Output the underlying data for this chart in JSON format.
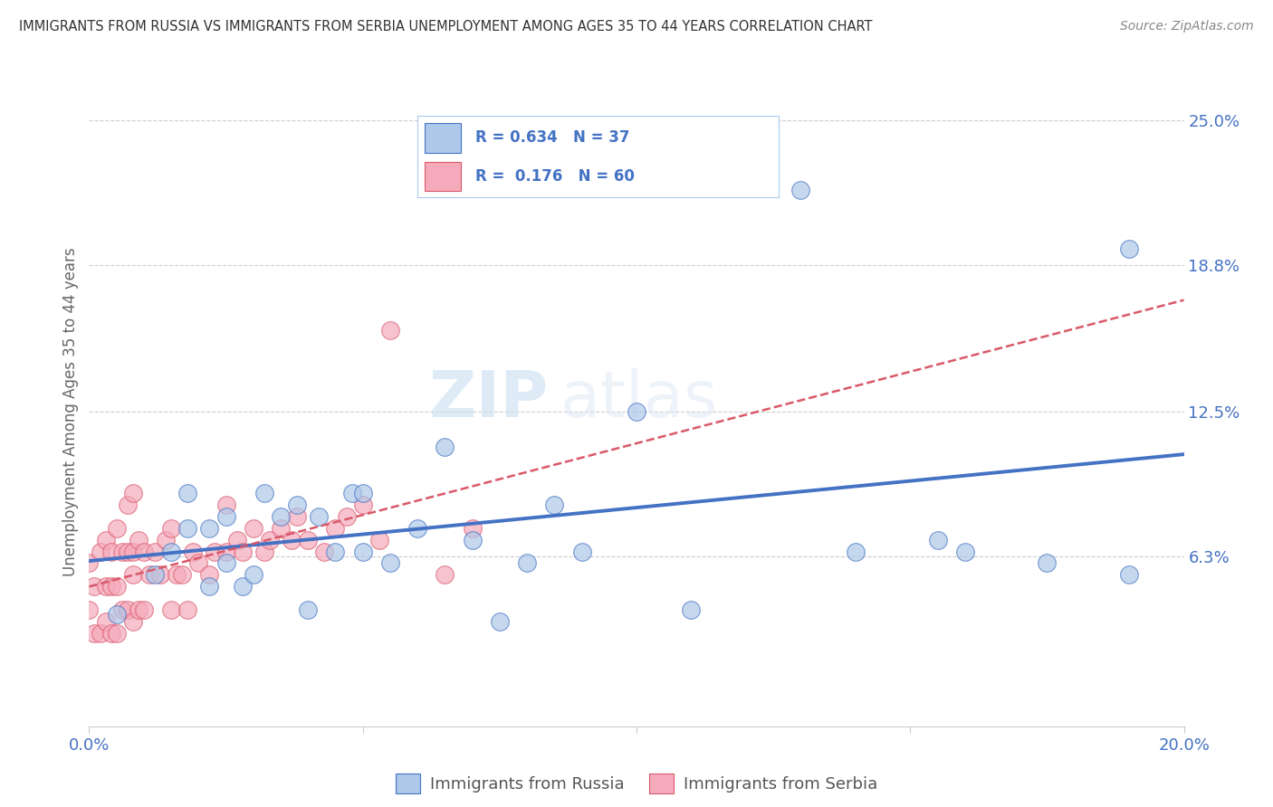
{
  "title": "IMMIGRANTS FROM RUSSIA VS IMMIGRANTS FROM SERBIA UNEMPLOYMENT AMONG AGES 35 TO 44 YEARS CORRELATION CHART",
  "source": "Source: ZipAtlas.com",
  "ylabel": "Unemployment Among Ages 35 to 44 years",
  "xlim": [
    0.0,
    0.2
  ],
  "ylim": [
    -0.01,
    0.26
  ],
  "ytick_labels_right": [
    "6.3%",
    "12.5%",
    "18.8%",
    "25.0%"
  ],
  "ytick_vals_right": [
    0.063,
    0.125,
    0.188,
    0.25
  ],
  "russia_R": "0.634",
  "russia_N": "37",
  "serbia_R": "0.176",
  "serbia_N": "60",
  "russia_color": "#adc8e8",
  "serbia_color": "#f5aabb",
  "russia_line_color": "#4472c4",
  "serbia_line_color": "#d9596a",
  "background_color": "#ffffff",
  "watermark_zip": "ZIP",
  "watermark_atlas": "atlas",
  "russia_x": [
    0.005,
    0.012,
    0.015,
    0.018,
    0.018,
    0.022,
    0.022,
    0.025,
    0.025,
    0.028,
    0.03,
    0.032,
    0.035,
    0.038,
    0.04,
    0.042,
    0.045,
    0.048,
    0.05,
    0.05,
    0.055,
    0.06,
    0.065,
    0.07,
    0.075,
    0.08,
    0.085,
    0.09,
    0.1,
    0.11,
    0.13,
    0.14,
    0.155,
    0.16,
    0.175,
    0.19,
    0.19
  ],
  "russia_y": [
    0.038,
    0.055,
    0.065,
    0.09,
    0.075,
    0.05,
    0.075,
    0.06,
    0.08,
    0.05,
    0.055,
    0.09,
    0.08,
    0.085,
    0.04,
    0.08,
    0.065,
    0.09,
    0.065,
    0.09,
    0.06,
    0.075,
    0.11,
    0.07,
    0.035,
    0.06,
    0.085,
    0.065,
    0.125,
    0.04,
    0.22,
    0.065,
    0.07,
    0.065,
    0.06,
    0.195,
    0.055
  ],
  "serbia_x": [
    0.0,
    0.0,
    0.001,
    0.001,
    0.002,
    0.002,
    0.003,
    0.003,
    0.003,
    0.004,
    0.004,
    0.004,
    0.005,
    0.005,
    0.005,
    0.006,
    0.006,
    0.007,
    0.007,
    0.007,
    0.008,
    0.008,
    0.008,
    0.008,
    0.009,
    0.009,
    0.01,
    0.01,
    0.011,
    0.012,
    0.013,
    0.014,
    0.015,
    0.015,
    0.016,
    0.017,
    0.018,
    0.019,
    0.02,
    0.022,
    0.023,
    0.025,
    0.025,
    0.027,
    0.028,
    0.03,
    0.032,
    0.033,
    0.035,
    0.037,
    0.038,
    0.04,
    0.043,
    0.045,
    0.047,
    0.05,
    0.053,
    0.055,
    0.065,
    0.07
  ],
  "serbia_y": [
    0.04,
    0.06,
    0.03,
    0.05,
    0.03,
    0.065,
    0.035,
    0.05,
    0.07,
    0.03,
    0.05,
    0.065,
    0.03,
    0.05,
    0.075,
    0.04,
    0.065,
    0.04,
    0.065,
    0.085,
    0.035,
    0.055,
    0.065,
    0.09,
    0.04,
    0.07,
    0.04,
    0.065,
    0.055,
    0.065,
    0.055,
    0.07,
    0.04,
    0.075,
    0.055,
    0.055,
    0.04,
    0.065,
    0.06,
    0.055,
    0.065,
    0.065,
    0.085,
    0.07,
    0.065,
    0.075,
    0.065,
    0.07,
    0.075,
    0.07,
    0.08,
    0.07,
    0.065,
    0.075,
    0.08,
    0.085,
    0.07,
    0.16,
    0.055,
    0.075
  ]
}
